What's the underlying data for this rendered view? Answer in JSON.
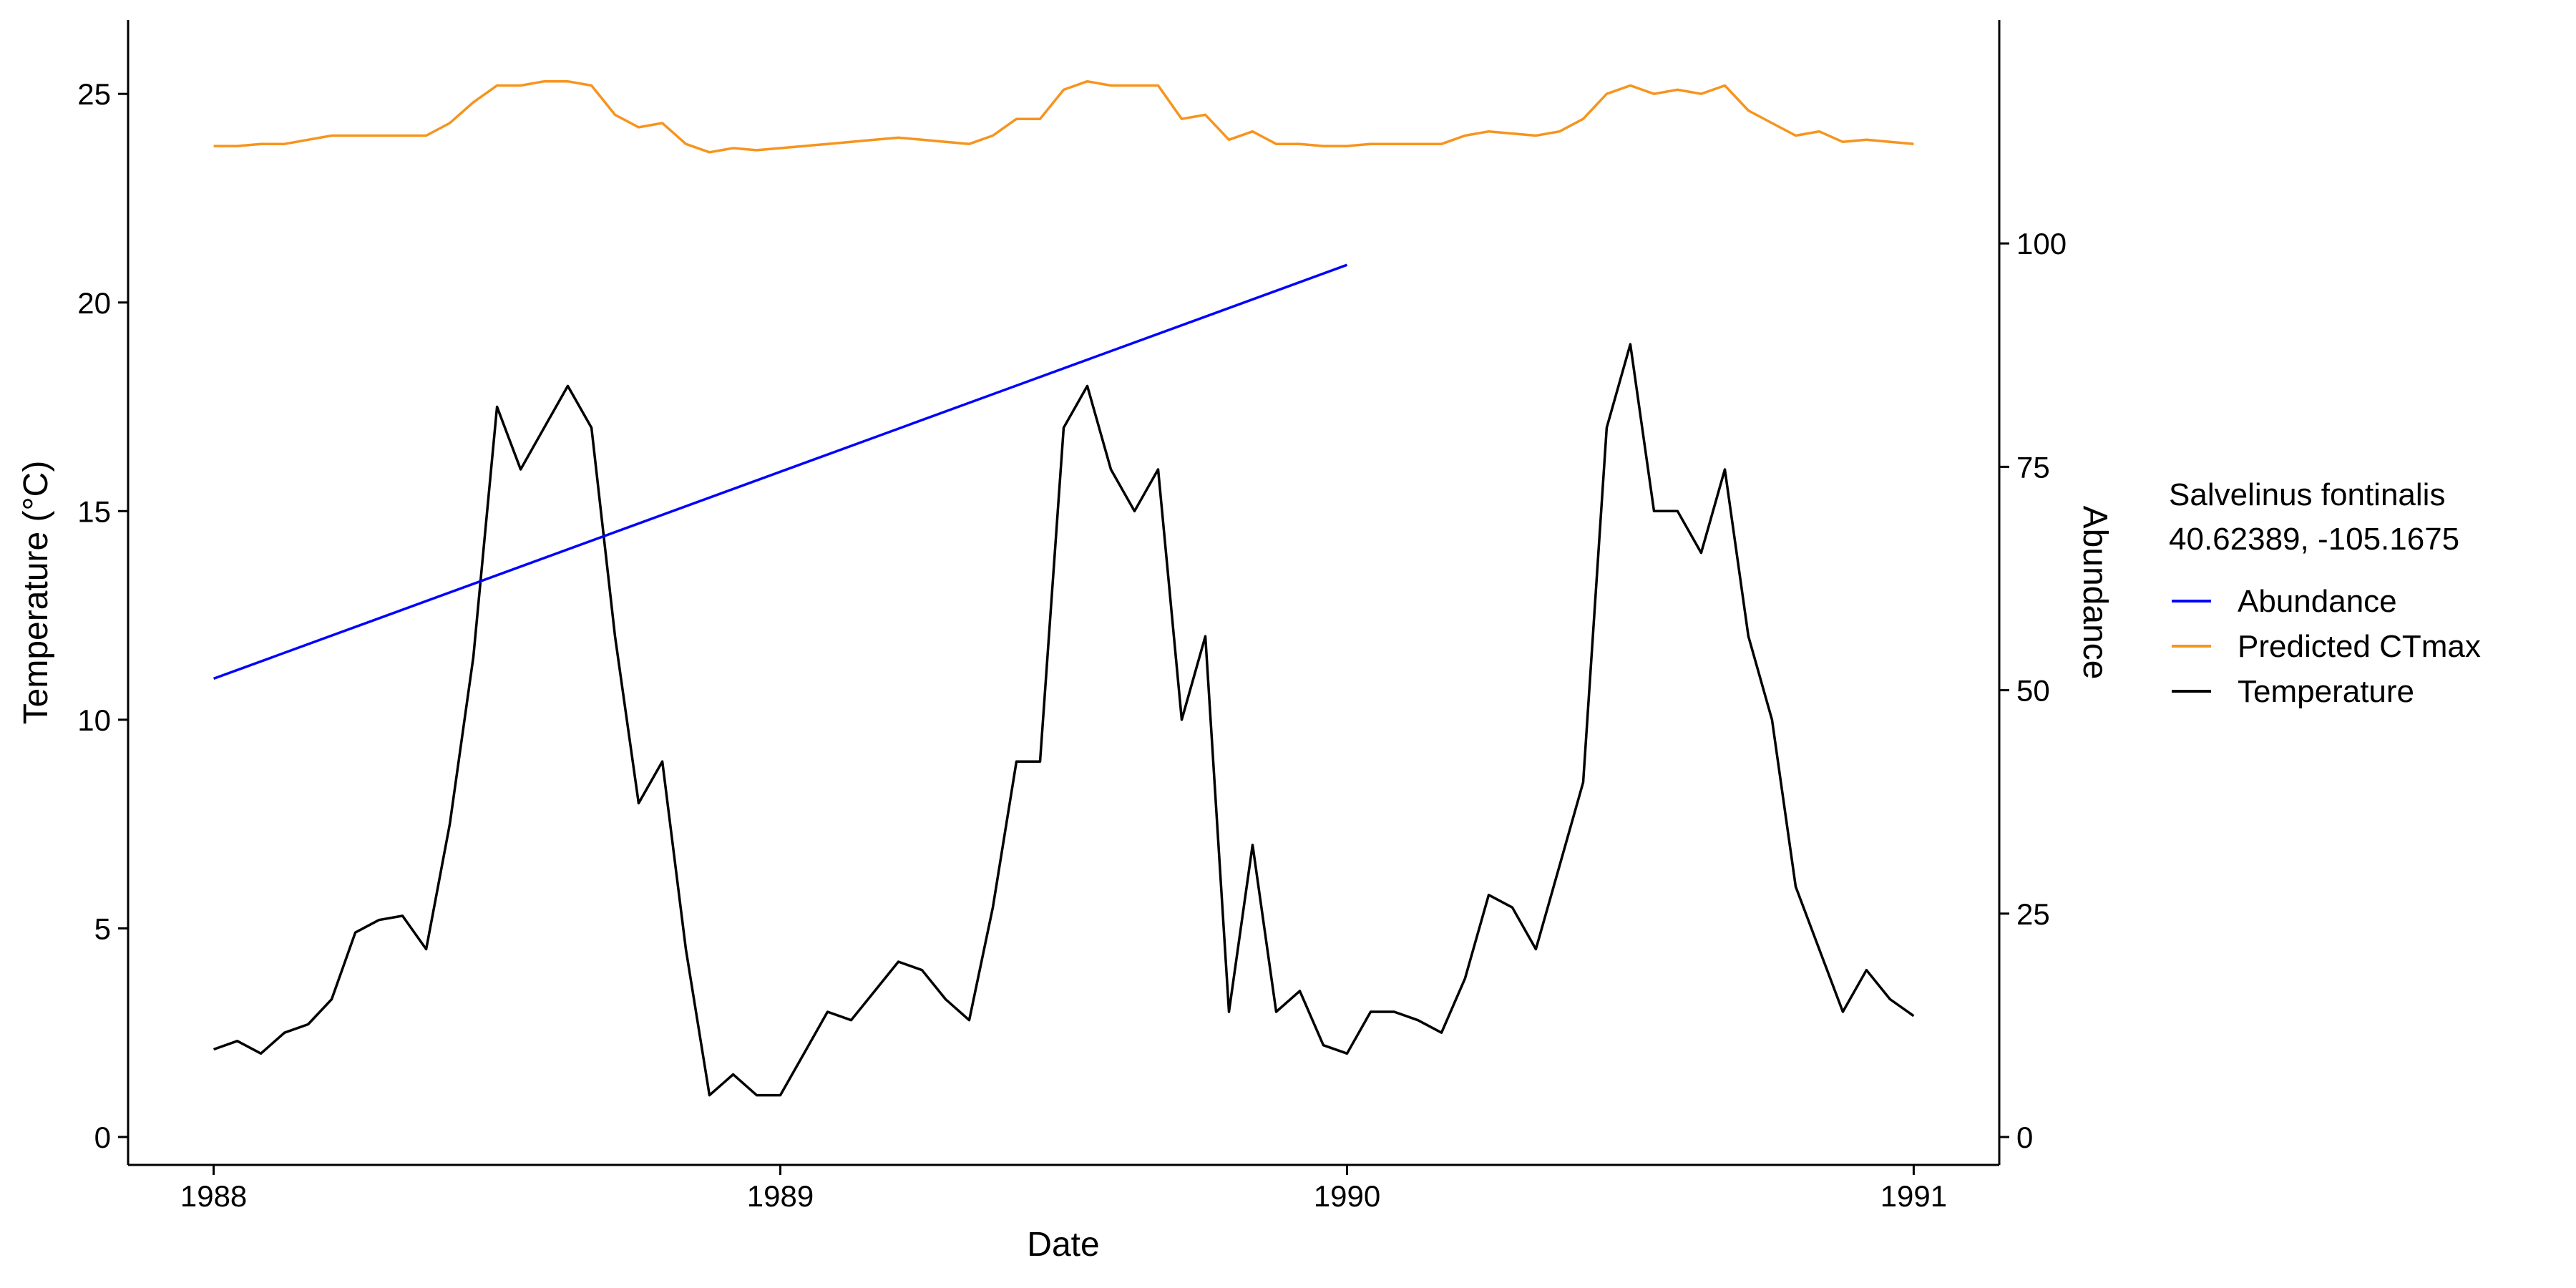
{
  "chart_data": {
    "type": "line",
    "x_label": "Date",
    "y_label": "Temperature (°C)",
    "y2_label": "Abundance",
    "y2_label_color": "#0000ff",
    "legend_title": [
      "Salvelinus fontinalis",
      "40.62389, -105.1675"
    ],
    "legend": "right",
    "xlim": [
      1987.849,
      1991.151
    ],
    "xticks": [
      1988,
      1989,
      1990,
      1991
    ],
    "ylim": [
      -0.67,
      26.77
    ],
    "yticks": [
      0,
      5,
      10,
      15,
      20,
      25
    ],
    "y2lim": [
      -3.125,
      125
    ],
    "y2ticks": [
      0,
      25,
      50,
      75,
      100
    ],
    "grid": false,
    "x": [
      1988,
      1988.0417,
      1988.0833,
      1988.125,
      1988.1667,
      1988.2083,
      1988.25,
      1988.2917,
      1988.3333,
      1988.375,
      1988.4167,
      1988.4583,
      1988.5,
      1988.5417,
      1988.5833,
      1988.625,
      1988.6667,
      1988.7083,
      1988.75,
      1988.7917,
      1988.8333,
      1988.875,
      1988.9167,
      1988.9583,
      1989,
      1989.0417,
      1989.0833,
      1989.125,
      1989.1667,
      1989.2083,
      1989.25,
      1989.2917,
      1989.3333,
      1989.375,
      1989.4167,
      1989.4583,
      1989.5,
      1989.5417,
      1989.5833,
      1989.625,
      1989.6667,
      1989.7083,
      1989.75,
      1989.7917,
      1989.8333,
      1989.875,
      1989.9167,
      1989.9583,
      1990,
      1990.0417,
      1990.0833,
      1990.125,
      1990.1667,
      1990.2083,
      1990.25,
      1990.2917,
      1990.3333,
      1990.375,
      1990.4167,
      1990.4583,
      1990.5,
      1990.5417,
      1990.5833,
      1990.625,
      1990.6667,
      1990.7083,
      1990.75,
      1990.7917,
      1990.8333,
      1990.875,
      1990.9167,
      1990.9583,
      1991
    ],
    "series": [
      {
        "name": "Abundance",
        "color": "#0000ff",
        "axis": "y2",
        "x": [
          1988,
          1990
        ],
        "values": [
          51.3,
          97.6
        ]
      },
      {
        "name": "Predicted CTmax",
        "color": "#f7941d",
        "values": [
          23.75,
          23.75,
          23.8,
          23.8,
          23.9,
          24.0,
          24.0,
          24.0,
          24.0,
          24.0,
          24.3,
          24.8,
          25.2,
          25.2,
          25.3,
          25.3,
          25.2,
          24.5,
          24.2,
          24.3,
          23.8,
          23.6,
          23.7,
          23.65,
          23.7,
          23.75,
          23.8,
          23.85,
          23.9,
          23.95,
          23.9,
          23.85,
          23.8,
          24.0,
          24.4,
          24.4,
          25.1,
          25.3,
          25.2,
          25.2,
          25.2,
          24.4,
          24.5,
          23.9,
          24.1,
          23.8,
          23.8,
          23.75,
          23.75,
          23.8,
          23.8,
          23.8,
          23.8,
          24.0,
          24.1,
          24.05,
          24.0,
          24.1,
          24.4,
          25.0,
          25.2,
          25.0,
          25.1,
          25.0,
          25.2,
          24.6,
          24.3,
          24.0,
          24.1,
          23.85,
          23.9,
          23.85,
          23.8
        ]
      },
      {
        "name": "Temperature",
        "color": "#000000",
        "values": [
          2.1,
          2.3,
          2.0,
          2.5,
          2.7,
          3.3,
          4.9,
          5.2,
          5.3,
          4.5,
          7.5,
          11.5,
          17.5,
          16,
          17,
          18,
          17,
          12,
          8,
          9,
          4.5,
          1.0,
          1.5,
          1.0,
          1.0,
          2.0,
          3.0,
          2.8,
          3.5,
          4.2,
          4.0,
          3.3,
          2.8,
          5.5,
          9,
          9,
          17,
          18,
          16,
          15,
          16,
          10,
          12,
          3,
          7,
          3,
          3.5,
          2.2,
          2.0,
          3.0,
          3.0,
          2.8,
          2.5,
          3.8,
          5.8,
          5.5,
          4.5,
          6.5,
          8.5,
          17,
          19,
          15,
          15,
          14,
          16,
          12,
          10,
          6,
          4.5,
          3,
          4,
          3.3,
          2.9
        ]
      }
    ]
  }
}
